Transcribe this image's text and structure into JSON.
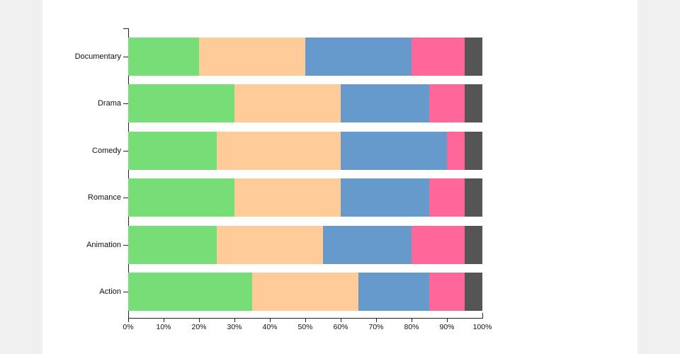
{
  "page": {
    "background_color": "#f0f0f0",
    "card_background_color": "#ffffff",
    "axis_color": "#222222",
    "label_color": "#111111"
  },
  "chart_data": {
    "type": "bar",
    "orientation": "horizontal",
    "stacked": true,
    "title": "",
    "legend": "none",
    "grid": false,
    "categories": [
      "Documentary",
      "Drama",
      "Comedy",
      "Romance",
      "Animation",
      "Action"
    ],
    "series": [
      {
        "name": "green",
        "color": "#77DD77",
        "values": [
          20,
          30,
          25,
          30,
          25,
          35
        ]
      },
      {
        "name": "peach",
        "color": "#FFCC99",
        "values": [
          30,
          30,
          35,
          30,
          30,
          30
        ]
      },
      {
        "name": "blue",
        "color": "#6699CC",
        "values": [
          30,
          25,
          30,
          25,
          25,
          20
        ]
      },
      {
        "name": "pink",
        "color": "#FF6699",
        "values": [
          15,
          10,
          5,
          10,
          15,
          10
        ]
      },
      {
        "name": "gray",
        "color": "#555555",
        "values": [
          5,
          5,
          5,
          5,
          5,
          5
        ]
      }
    ],
    "x_axis": {
      "min": 0,
      "max": 100,
      "unit": "%",
      "tick_labels": [
        "0%",
        "10%",
        "20%",
        "30%",
        "40%",
        "50%",
        "60%",
        "70%",
        "80%",
        "90%",
        "100%"
      ]
    }
  }
}
